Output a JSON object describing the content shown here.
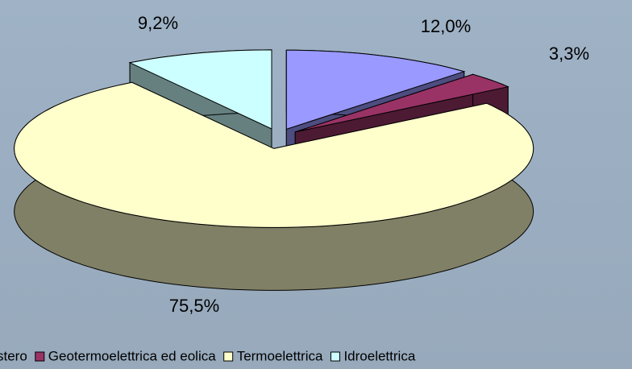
{
  "chart_data": {
    "type": "pie",
    "categories": [
      "stero",
      "Geotermoelettrica ed eolica",
      "Termoelettrica",
      "Idroelettrica"
    ],
    "values": [
      12.0,
      3.3,
      75.5,
      9.2
    ],
    "value_labels": [
      "12,0%",
      "3,3%",
      "75,5%",
      "9,2%"
    ],
    "colors": [
      "#9999ff",
      "#993366",
      "#ffffcc",
      "#ccffff"
    ],
    "legend": "bottom"
  }
}
